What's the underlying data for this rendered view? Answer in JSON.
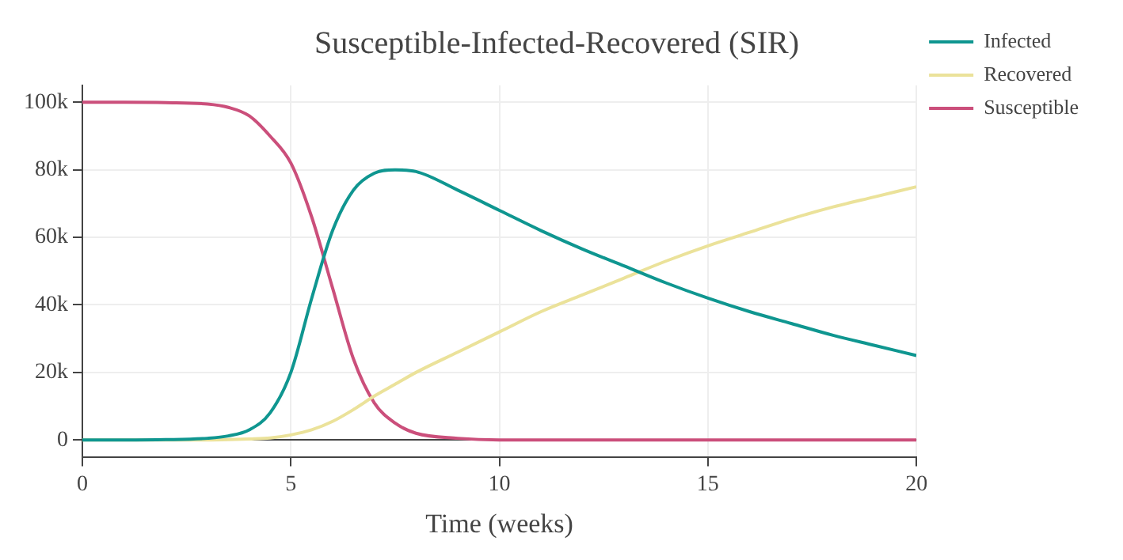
{
  "chart_data": {
    "type": "line",
    "title": "Susceptible-Infected-Recovered (SIR)",
    "xlabel": "Time (weeks)",
    "xlim": [
      0,
      20
    ],
    "xticks": [
      0,
      5,
      10,
      15,
      20
    ],
    "ylim": [
      -5000,
      105000
    ],
    "yticks": [
      {
        "value": 0,
        "label": "0"
      },
      {
        "value": 20000,
        "label": "20k"
      },
      {
        "value": 40000,
        "label": "40k"
      },
      {
        "value": 60000,
        "label": "60k"
      },
      {
        "value": 80000,
        "label": "80k"
      },
      {
        "value": 100000,
        "label": "100k"
      }
    ],
    "grid": true,
    "legend": "top right",
    "marker": "none",
    "line_style": "solid",
    "x": [
      0,
      1,
      2,
      3,
      3.5,
      4,
      4.5,
      5,
      5.5,
      6,
      6.5,
      7,
      7.5,
      8,
      9,
      10,
      11,
      12,
      13,
      14,
      15,
      16,
      17,
      18,
      19,
      20
    ],
    "series": [
      {
        "name": "Infected",
        "color": "#0f9690",
        "values": [
          0,
          0,
          100,
          500,
          1200,
          3000,
          8000,
          20000,
          42000,
          62000,
          74000,
          79000,
          80000,
          79500,
          74000,
          68000,
          62000,
          56500,
          51500,
          46500,
          42000,
          38000,
          34500,
          31000,
          28000,
          25000
        ]
      },
      {
        "name": "Recovered",
        "color": "#ebe29a",
        "values": [
          0,
          0,
          0,
          0,
          100,
          300,
          600,
          1500,
          3000,
          5500,
          9000,
          13000,
          16500,
          20000,
          26000,
          32000,
          38000,
          43000,
          48000,
          53000,
          57500,
          61500,
          65500,
          69000,
          72000,
          75000
        ]
      },
      {
        "name": "Susceptible",
        "color": "#cb4f7b",
        "values": [
          100000,
          100000,
          99900,
          99500,
          98500,
          96000,
          90000,
          82000,
          66000,
          45000,
          24000,
          11000,
          5000,
          2000,
          500,
          0,
          0,
          0,
          0,
          0,
          0,
          0,
          0,
          0,
          0,
          0
        ]
      }
    ]
  }
}
